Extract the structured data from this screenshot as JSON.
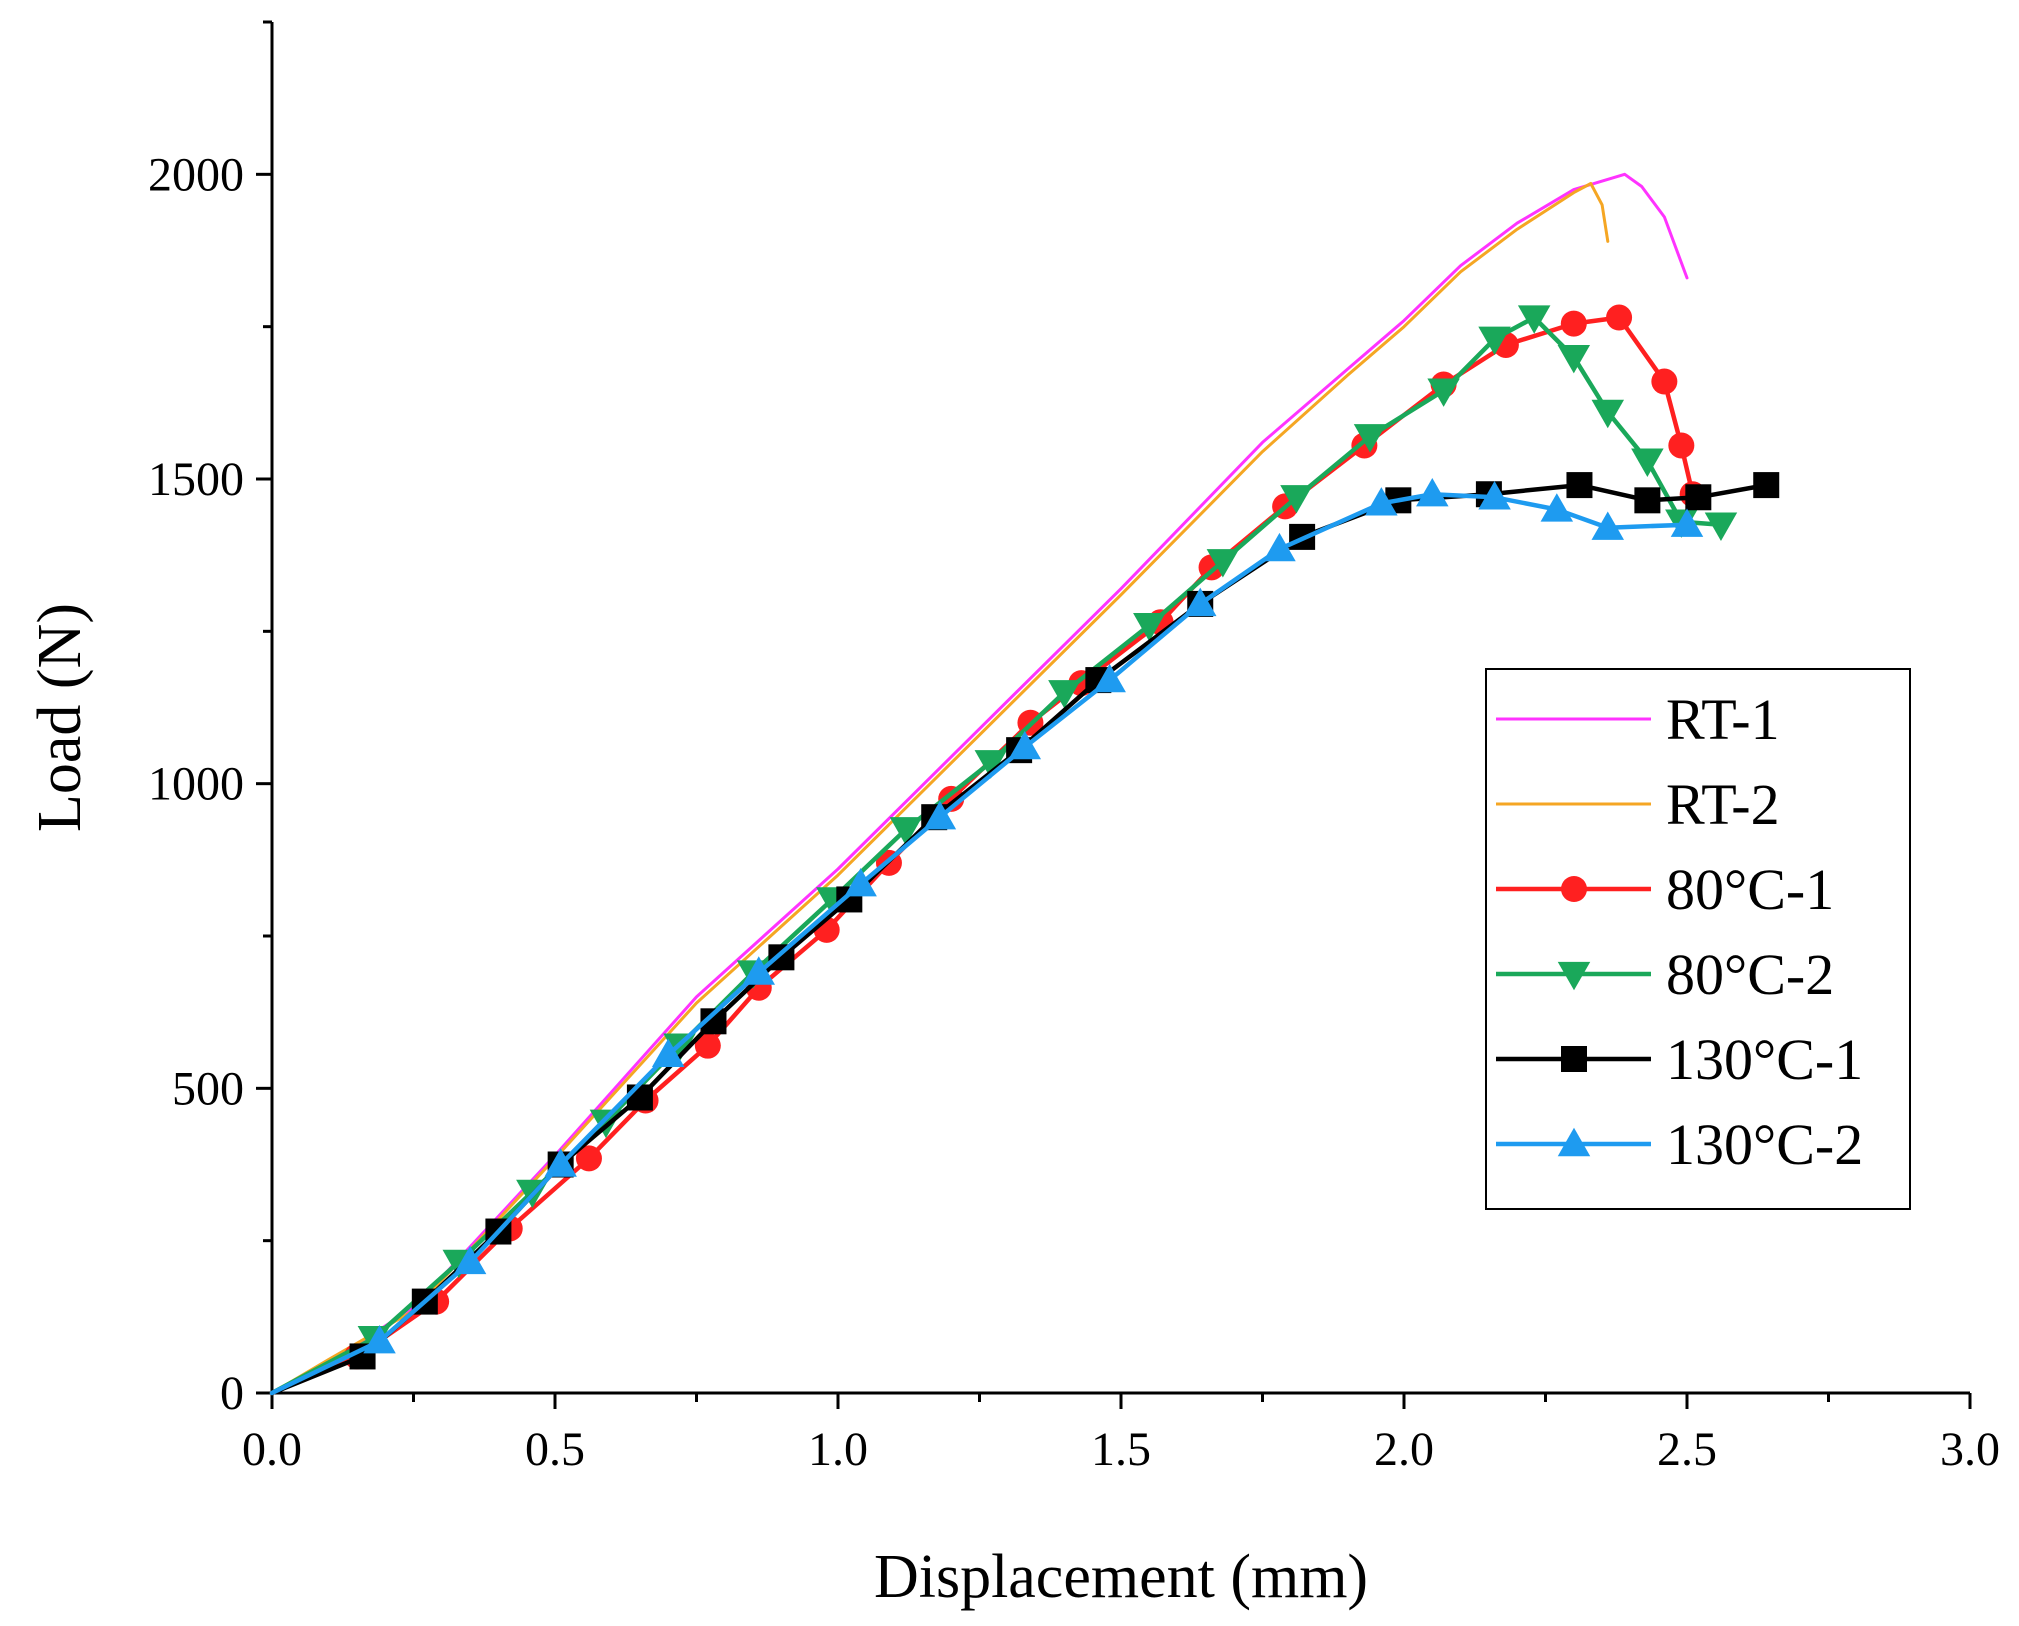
{
  "chart_data": {
    "type": "line",
    "title": "",
    "xlabel": "Displacement (mm)",
    "ylabel": "Load (N)",
    "xlim": [
      0,
      3.0
    ],
    "ylim": [
      0,
      2250
    ],
    "xticks": [
      0.0,
      0.5,
      1.0,
      1.5,
      2.0,
      2.5,
      3.0
    ],
    "xtick_labels": [
      "0.0",
      "0.5",
      "1.0",
      "1.5",
      "2.0",
      "2.5",
      "3.0"
    ],
    "yticks": [
      0,
      500,
      1000,
      1500,
      2000
    ],
    "ytick_labels": [
      "0",
      "500",
      "1000",
      "1500",
      "2000"
    ],
    "grid": false,
    "legend_position": "right",
    "series": [
      {
        "name": "RT-1",
        "color": "#ff33ff",
        "marker": "none",
        "points": [
          [
            0,
            0
          ],
          [
            0.1,
            50
          ],
          [
            0.25,
            140
          ],
          [
            0.5,
            390
          ],
          [
            0.75,
            650
          ],
          [
            1.0,
            860
          ],
          [
            1.25,
            1090
          ],
          [
            1.5,
            1320
          ],
          [
            1.75,
            1560
          ],
          [
            1.9,
            1680
          ],
          [
            2.0,
            1760
          ],
          [
            2.1,
            1850
          ],
          [
            2.2,
            1920
          ],
          [
            2.3,
            1975
          ],
          [
            2.39,
            2000
          ],
          [
            2.42,
            1980
          ],
          [
            2.46,
            1930
          ],
          [
            2.5,
            1830
          ]
        ]
      },
      {
        "name": "RT-2",
        "color": "#f5a623",
        "marker": "none",
        "points": [
          [
            0,
            0
          ],
          [
            0.1,
            55
          ],
          [
            0.25,
            135
          ],
          [
            0.5,
            385
          ],
          [
            0.75,
            640
          ],
          [
            1.0,
            850
          ],
          [
            1.25,
            1080
          ],
          [
            1.5,
            1310
          ],
          [
            1.75,
            1545
          ],
          [
            1.9,
            1670
          ],
          [
            2.0,
            1750
          ],
          [
            2.1,
            1840
          ],
          [
            2.2,
            1910
          ],
          [
            2.3,
            1970
          ],
          [
            2.33,
            1985
          ],
          [
            2.35,
            1950
          ],
          [
            2.36,
            1890
          ]
        ]
      },
      {
        "name": "80°C-1",
        "color": "#ff2020",
        "marker": "circle",
        "points": [
          [
            0,
            0
          ],
          [
            0.15,
            60
          ],
          [
            0.29,
            150
          ],
          [
            0.42,
            270
          ],
          [
            0.56,
            385
          ],
          [
            0.66,
            480
          ],
          [
            0.77,
            570
          ],
          [
            0.86,
            665
          ],
          [
            0.98,
            760
          ],
          [
            1.09,
            870
          ],
          [
            1.2,
            975
          ],
          [
            1.34,
            1100
          ],
          [
            1.43,
            1165
          ],
          [
            1.57,
            1265
          ],
          [
            1.66,
            1355
          ],
          [
            1.79,
            1455
          ],
          [
            1.93,
            1555
          ],
          [
            2.07,
            1655
          ],
          [
            2.18,
            1720
          ],
          [
            2.3,
            1755
          ],
          [
            2.38,
            1765
          ],
          [
            2.46,
            1660
          ],
          [
            2.49,
            1555
          ],
          [
            2.51,
            1475
          ]
        ]
      },
      {
        "name": "80°C-2",
        "color": "#1aa85a",
        "marker": "triangle-down",
        "points": [
          [
            0,
            0
          ],
          [
            0.18,
            90
          ],
          [
            0.33,
            215
          ],
          [
            0.46,
            330
          ],
          [
            0.59,
            445
          ],
          [
            0.72,
            570
          ],
          [
            0.85,
            690
          ],
          [
            0.99,
            810
          ],
          [
            1.12,
            925
          ],
          [
            1.27,
            1035
          ],
          [
            1.4,
            1150
          ],
          [
            1.55,
            1260
          ],
          [
            1.68,
            1365
          ],
          [
            1.81,
            1470
          ],
          [
            1.94,
            1570
          ],
          [
            2.07,
            1645
          ],
          [
            2.16,
            1730
          ],
          [
            2.23,
            1765
          ],
          [
            2.3,
            1700
          ],
          [
            2.36,
            1610
          ],
          [
            2.43,
            1530
          ],
          [
            2.49,
            1430
          ],
          [
            2.56,
            1425
          ]
        ]
      },
      {
        "name": "130°C-1",
        "color": "#000000",
        "marker": "square",
        "points": [
          [
            0,
            0
          ],
          [
            0.16,
            60
          ],
          [
            0.27,
            150
          ],
          [
            0.4,
            265
          ],
          [
            0.51,
            375
          ],
          [
            0.65,
            485
          ],
          [
            0.78,
            610
          ],
          [
            0.9,
            715
          ],
          [
            1.02,
            810
          ],
          [
            1.17,
            945
          ],
          [
            1.32,
            1055
          ],
          [
            1.46,
            1170
          ],
          [
            1.64,
            1295
          ],
          [
            1.82,
            1405
          ],
          [
            1.99,
            1465
          ],
          [
            2.15,
            1475
          ],
          [
            2.31,
            1490
          ],
          [
            2.43,
            1465
          ],
          [
            2.52,
            1470
          ],
          [
            2.64,
            1490
          ]
        ]
      },
      {
        "name": "130°C-2",
        "color": "#1e9bf0",
        "marker": "triangle-up",
        "points": [
          [
            0,
            0
          ],
          [
            0.19,
            85
          ],
          [
            0.35,
            215
          ],
          [
            0.51,
            375
          ],
          [
            0.7,
            555
          ],
          [
            0.86,
            690
          ],
          [
            1.04,
            835
          ],
          [
            1.18,
            945
          ],
          [
            1.33,
            1060
          ],
          [
            1.48,
            1170
          ],
          [
            1.64,
            1295
          ],
          [
            1.78,
            1385
          ],
          [
            1.96,
            1460
          ],
          [
            2.05,
            1475
          ],
          [
            2.16,
            1470
          ],
          [
            2.27,
            1450
          ],
          [
            2.36,
            1420
          ],
          [
            2.5,
            1425
          ]
        ]
      }
    ]
  }
}
